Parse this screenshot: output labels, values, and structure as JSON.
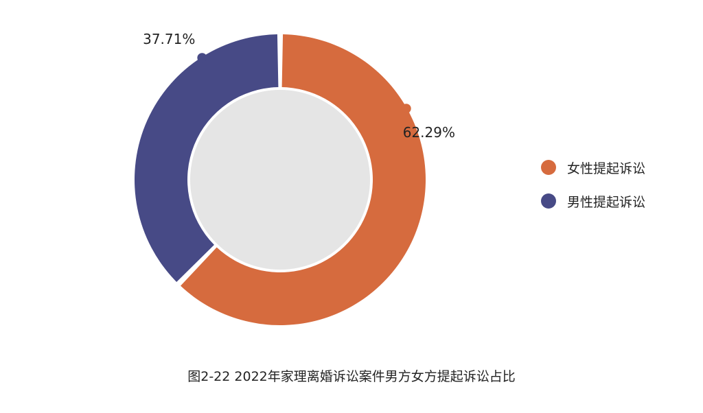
{
  "chart_data": {
    "type": "pie",
    "variant": "donut",
    "slices": [
      {
        "label": "女性提起诉讼",
        "value": 62.29,
        "value_label": "62.29%",
        "color": "#d66b3e"
      },
      {
        "label": "男性提起诉讼",
        "value": 37.71,
        "value_label": "37.71%",
        "color": "#474a86"
      }
    ],
    "legend_position": "right",
    "center_color": "#e5e5e5"
  },
  "caption": "图2-22  2022年家理离婚诉讼案件男方女方提起诉讼占比"
}
